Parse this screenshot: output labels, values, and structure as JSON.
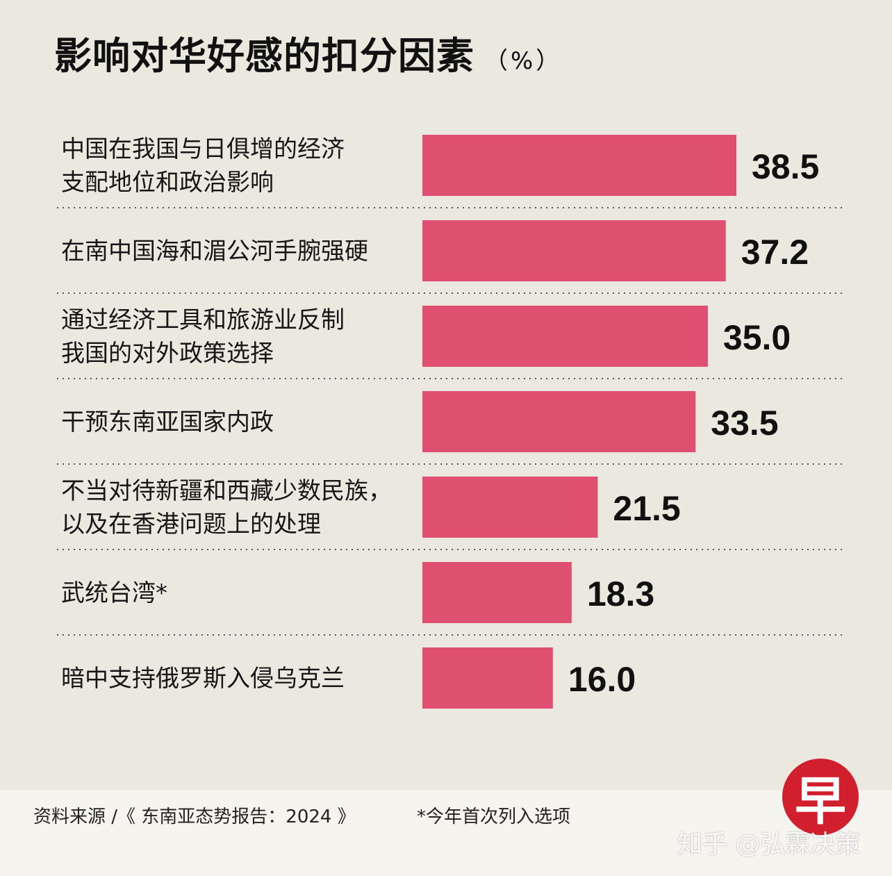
{
  "title": "影响对华好感的扣分因素",
  "unit": "（%）",
  "colors": {
    "bar": "#df4f6f",
    "background": "#ebe8df"
  },
  "chart_data": {
    "type": "bar",
    "orientation": "horizontal",
    "title": "影响对华好感的扣分因素",
    "unit": "%",
    "grid": false,
    "categories": [
      [
        "中国在我国与日俱增的经济",
        "支配地位和政治影响"
      ],
      [
        "在南中国海和湄公河手腕强硬"
      ],
      [
        "通过经济工具和旅游业反制",
        "我国的对外政策选择"
      ],
      [
        "干预东南亚国家内政"
      ],
      [
        "不当对待新疆和西藏少数民族，",
        "以及在香港问题上的处理"
      ],
      [
        "武统台湾*"
      ],
      [
        "暗中支持俄罗斯入侵乌克兰"
      ]
    ],
    "values": [
      38.5,
      37.2,
      35.0,
      33.5,
      21.5,
      18.3,
      16.0
    ],
    "value_labels": [
      "38.5",
      "37.2",
      "35.0",
      "33.5",
      "21.5",
      "18.3",
      "16.0"
    ]
  },
  "footer": {
    "source": "资料来源 /《 东南亚态势报告：2024 》",
    "note": "*今年首次列入选项"
  },
  "logo_text": "早",
  "watermark": "知乎 @弘霖决策"
}
